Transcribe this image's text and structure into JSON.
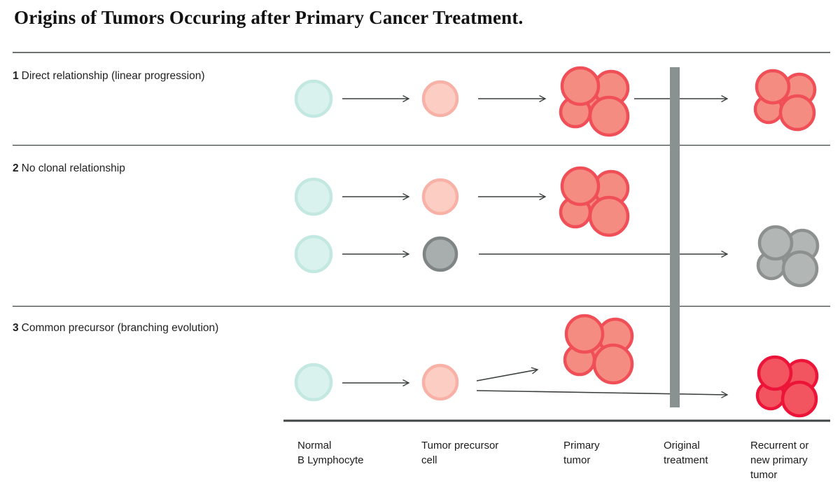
{
  "title": "Origins of Tumors Occuring after Primary Cancer Treatment.",
  "sections": [
    {
      "number": "1",
      "label": "Direct relationship (linear progression)"
    },
    {
      "number": "2",
      "label": "No clonal relationship"
    },
    {
      "number": "3",
      "label": "Common precursor (branching evolution)"
    }
  ],
  "columns": [
    {
      "label": "Normal\nB Lymphocyte"
    },
    {
      "label": "Tumor precursor\ncell"
    },
    {
      "label": "Primary\ntumor"
    },
    {
      "label": "Original\ntreatment"
    },
    {
      "label": "Recurrent or\nnew primary\ntumor"
    }
  ],
  "figure": {
    "colors": {
      "normal_cell_fill": "#d9f2ee",
      "normal_cell_stroke": "#c3e8e1",
      "precursor_fill": "#fccdc3",
      "precursor_stroke": "#f8b1a6",
      "gray_cell_fill": "#a8adad",
      "gray_cell_stroke": "#7f8585",
      "tumor_salmon_fill": "#f58c81",
      "tumor_salmon_stroke": "#f04f58",
      "tumor_crimson_fill": "#f35560",
      "tumor_crimson_stroke": "#ec1438",
      "tumor_gray_fill": "#b2b7b5",
      "tumor_gray_stroke": "#8c9190",
      "treatment_bar": "#8a9191",
      "arrow": "#3a3e3e",
      "rule": "#3d4242",
      "axis": "#3f4444",
      "text": "#1a1a1a"
    }
  }
}
